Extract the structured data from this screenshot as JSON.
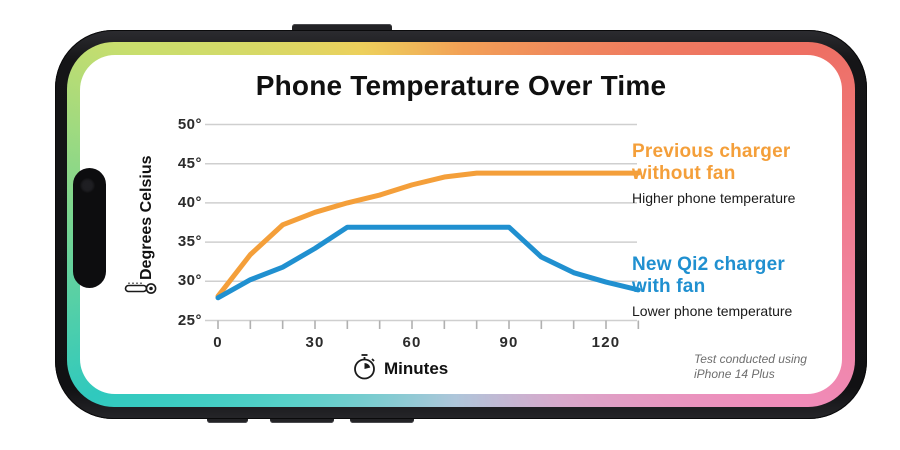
{
  "phone": {
    "frame_color": "#1a1a1c",
    "border_gradient": [
      "#F2A156",
      "#EE6F63",
      "#F07E93",
      "#F08BB9",
      "#D8A8CB",
      "#AEC6DA",
      "#56D0C8",
      "#2FC9BE",
      "#7CD68F",
      "#C9DE6D",
      "#EDD05C"
    ]
  },
  "chart": {
    "title": "Phone Temperature Over Time",
    "ylabel": "Degrees Celsius",
    "xlabel": "Minutes",
    "legend_orange": {
      "line1": "Previous charger",
      "line2": "without fan",
      "sub": "Higher phone temperature"
    },
    "legend_blue": {
      "line1": "New Qi2 charger",
      "line2": "with fan",
      "sub": "Lower phone temperature"
    },
    "footnote": {
      "line1": "Test conducted using",
      "line2": "iPhone 14 Plus"
    }
  },
  "chart_data": {
    "type": "line",
    "title": "Phone Temperature Over Time",
    "xlabel": "Minutes",
    "ylabel": "Degrees Celsius",
    "x": [
      0,
      10,
      20,
      30,
      40,
      50,
      60,
      70,
      80,
      90,
      100,
      110,
      120,
      130
    ],
    "series": [
      {
        "name": "Previous charger without fan",
        "note": "Higher phone temperature",
        "color": "#F49F3A",
        "values": [
          28.1,
          33.4,
          37.2,
          38.8,
          40.0,
          41.0,
          42.3,
          43.3,
          43.8,
          43.8,
          43.8,
          43.8,
          43.8,
          43.8
        ]
      },
      {
        "name": "New Qi2 charger with fan",
        "note": "Lower phone temperature",
        "color": "#2090D0",
        "values": [
          27.9,
          30.2,
          31.8,
          34.2,
          36.9,
          36.9,
          36.9,
          36.9,
          36.9,
          36.9,
          33.1,
          31.1,
          29.9,
          28.9
        ]
      }
    ],
    "xticks": [
      0,
      30,
      60,
      90,
      120
    ],
    "xticks_minor": [
      0,
      10,
      20,
      30,
      40,
      50,
      60,
      70,
      80,
      90,
      100,
      110,
      120,
      130
    ],
    "yticks": [
      25,
      30,
      35,
      40,
      45,
      50
    ],
    "ytick_suffix": "°",
    "xlim": [
      0,
      130
    ],
    "ylim": [
      25,
      50
    ],
    "grid": "horizontal",
    "legend_position": "right",
    "grid_color": "#cfcfcf",
    "tick_color": "#b0b0b0"
  }
}
